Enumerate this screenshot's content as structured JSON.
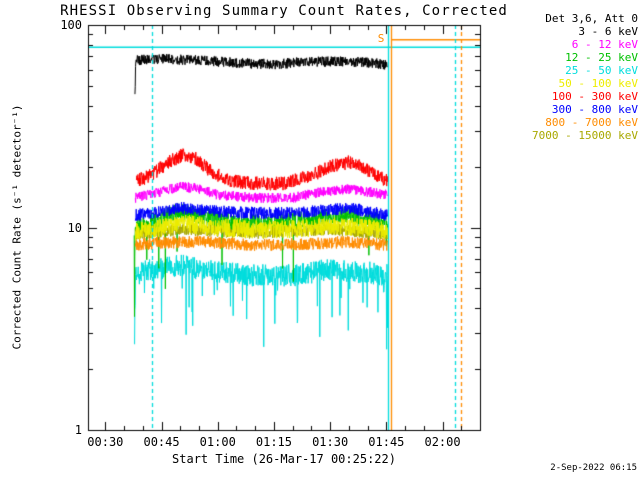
{
  "chart_data": {
    "type": "line",
    "title": "RHESSI Observing Summary Count Rates, Corrected",
    "xlabel": "Start Time (26-Mar-17 00:25:22)",
    "ylabel": "Corrected Count Rate (s⁻¹ detector⁻¹)",
    "timestamp": "2-Sep-2022 06:15",
    "background_color": "#ffffff",
    "axis_color": "#000000",
    "x_axis": {
      "start_min": 25.37,
      "end_min": 130.0,
      "minor_step_min": 5,
      "major_ticks": [
        {
          "min": 30,
          "label": "00:30"
        },
        {
          "min": 45,
          "label": "00:45"
        },
        {
          "min": 60,
          "label": "01:00"
        },
        {
          "min": 75,
          "label": "01:15"
        },
        {
          "min": 90,
          "label": "01:30"
        },
        {
          "min": 105,
          "label": "01:45"
        },
        {
          "min": 120,
          "label": "02:00"
        }
      ]
    },
    "y_axis": {
      "scale": "log",
      "min": 1,
      "max": 100,
      "major_ticks": [
        {
          "value": 1,
          "label": "1"
        },
        {
          "value": 10,
          "label": "10"
        },
        {
          "value": 100,
          "label": "100"
        }
      ]
    },
    "legend": {
      "title": "Det 3,6, Att 0",
      "entries": [
        {
          "label": "3 - 6 keV",
          "color": "#000000"
        },
        {
          "label": "6 - 12 keV",
          "color": "#ff00ff"
        },
        {
          "label": "12 - 25 keV",
          "color": "#00c000"
        },
        {
          "label": "25 - 50 keV",
          "color": "#00dddd"
        },
        {
          "label": "50 - 100 keV",
          "color": "#eded00"
        },
        {
          "label": "100 - 300 keV",
          "color": "#ff0000"
        },
        {
          "label": "300 - 800 keV",
          "color": "#0000ff"
        },
        {
          "label": "800 - 7000 keV",
          "color": "#ff8c00"
        },
        {
          "label": "7000 - 15000 keV",
          "color": "#a8a800"
        }
      ]
    },
    "seed": 20220902,
    "series": [
      {
        "name": "25 - 50 keV",
        "color": "#00dddd",
        "t_start": 37.8,
        "t_end": 105.4,
        "noise": 0.055,
        "spike_prob": 0.05,
        "spike_min": 0.45,
        "baseline": [
          [
            37.8,
            3
          ],
          [
            38.1,
            6
          ],
          [
            45,
            6.3
          ],
          [
            50,
            6.5
          ],
          [
            60,
            6.0
          ],
          [
            70,
            5.8
          ],
          [
            80,
            5.8
          ],
          [
            90,
            6.2
          ],
          [
            100,
            6.0
          ],
          [
            105.4,
            5.8
          ]
        ]
      },
      {
        "name": "12 - 25 keV",
        "color": "#00c000",
        "t_start": 37.7,
        "t_end": 105.4,
        "noise": 0.045,
        "spike_prob": 0.02,
        "spike_min": 0.45,
        "baseline": [
          [
            37.7,
            10
          ],
          [
            37.75,
            2
          ],
          [
            37.9,
            10
          ],
          [
            45,
            11
          ],
          [
            50,
            12
          ],
          [
            55,
            11.5
          ],
          [
            65,
            10.5
          ],
          [
            75,
            10.5
          ],
          [
            85,
            11
          ],
          [
            95,
            11.5
          ],
          [
            105.4,
            10.5
          ]
        ]
      },
      {
        "name": "7000 - 15000 keV",
        "color": "#a8a800",
        "t_start": 38.0,
        "t_end": 105.4,
        "noise": 0.03,
        "spike_prob": 0,
        "spike_min": 1,
        "baseline": [
          [
            38,
            9.2
          ],
          [
            50,
            9.8
          ],
          [
            70,
            9.4
          ],
          [
            90,
            9.8
          ],
          [
            105.4,
            9.3
          ]
        ]
      },
      {
        "name": "50 - 100 keV",
        "color": "#eded00",
        "t_start": 38.0,
        "t_end": 105.4,
        "noise": 0.045,
        "spike_prob": 0,
        "spike_min": 1,
        "baseline": [
          [
            38,
            9.5
          ],
          [
            45,
            10
          ],
          [
            50,
            10.5
          ],
          [
            60,
            10
          ],
          [
            70,
            9.8
          ],
          [
            80,
            9.8
          ],
          [
            90,
            10.2
          ],
          [
            100,
            10
          ],
          [
            105.4,
            9.5
          ]
        ]
      },
      {
        "name": "800 - 7000 keV",
        "color": "#ff8c00",
        "t_start": 38.0,
        "t_end": 105.4,
        "noise": 0.03,
        "spike_prob": 0,
        "spike_min": 1,
        "baseline": [
          [
            38,
            8.2
          ],
          [
            45,
            8.4
          ],
          [
            55,
            8.5
          ],
          [
            70,
            8.2
          ],
          [
            85,
            8.3
          ],
          [
            95,
            8.5
          ],
          [
            105.4,
            8.2
          ]
        ]
      },
      {
        "name": "300 - 800 keV",
        "color": "#0000ff",
        "t_start": 38.0,
        "t_end": 105.4,
        "noise": 0.03,
        "spike_prob": 0,
        "spike_min": 1,
        "baseline": [
          [
            38,
            11.5
          ],
          [
            45,
            12
          ],
          [
            50,
            12.5
          ],
          [
            60,
            12
          ],
          [
            70,
            11.8
          ],
          [
            80,
            11.8
          ],
          [
            90,
            12.2
          ],
          [
            95,
            12.5
          ],
          [
            100,
            12
          ],
          [
            105.4,
            11.5
          ]
        ]
      },
      {
        "name": "6 - 12 keV",
        "color": "#ff00ff",
        "t_start": 38.0,
        "t_end": 105.4,
        "noise": 0.025,
        "spike_prob": 0,
        "spike_min": 1,
        "baseline": [
          [
            38,
            14
          ],
          [
            45,
            15
          ],
          [
            50,
            16
          ],
          [
            55,
            15.5
          ],
          [
            60,
            14.5
          ],
          [
            70,
            14
          ],
          [
            80,
            14
          ],
          [
            88,
            15
          ],
          [
            95,
            15.5
          ],
          [
            100,
            15
          ],
          [
            105.4,
            14.5
          ]
        ]
      },
      {
        "name": "100 - 300 keV",
        "color": "#ff0000",
        "t_start": 38.3,
        "t_end": 105.4,
        "noise": 0.034,
        "spike_prob": 0,
        "spike_min": 1,
        "baseline": [
          [
            38.3,
            17
          ],
          [
            42,
            18
          ],
          [
            47,
            21
          ],
          [
            51,
            23
          ],
          [
            54,
            22
          ],
          [
            58,
            19
          ],
          [
            63,
            17
          ],
          [
            70,
            16.5
          ],
          [
            78,
            16.5
          ],
          [
            85,
            18
          ],
          [
            90,
            20
          ],
          [
            95,
            21
          ],
          [
            99,
            20
          ],
          [
            102,
            18
          ],
          [
            105.4,
            17
          ]
        ]
      },
      {
        "name": "3 - 6 keV",
        "color": "#000000",
        "t_start": 37.9,
        "t_end": 105.4,
        "noise": 0.025,
        "spike_prob": 0,
        "spike_min": 1,
        "baseline": [
          [
            37.9,
            45
          ],
          [
            38.15,
            67
          ],
          [
            45,
            68
          ],
          [
            55,
            67
          ],
          [
            65,
            65
          ],
          [
            75,
            64
          ],
          [
            85,
            66
          ],
          [
            95,
            66
          ],
          [
            102,
            65
          ],
          [
            105,
            63
          ],
          [
            105.4,
            61
          ]
        ]
      }
    ],
    "flags": {
      "horizontal_lines": [
        {
          "color": "#00dddd",
          "value": 78,
          "t_start": 25.37,
          "t_end": 130.0,
          "dashed": false
        },
        {
          "color": "#ff8c00",
          "value": 85,
          "t_start": 106.3,
          "t_end": 130.0,
          "dashed": false
        }
      ],
      "vertical_lines": [
        {
          "color": "#00dddd",
          "t": 42.5,
          "dashed": true
        },
        {
          "color": "#00dddd",
          "t": 105.4,
          "dashed": false
        },
        {
          "color": "#ff8c00",
          "t": 106.3,
          "dashed": false
        },
        {
          "color": "#00dddd",
          "t": 123.3,
          "dashed": true
        },
        {
          "color": "#ff8c00",
          "t": 124.8,
          "dashed": true
        }
      ],
      "marker": {
        "label": "S",
        "color": "#ff8c00",
        "t": 103.6,
        "value": 85
      }
    }
  }
}
